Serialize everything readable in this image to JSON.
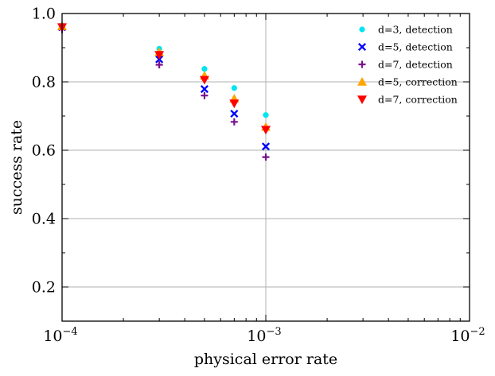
{
  "chart_data": {
    "type": "scatter",
    "title": "",
    "xlabel": "physical error rate",
    "ylabel": "success rate",
    "xscale": "log",
    "xlim": [
      0.0001,
      0.01
    ],
    "ylim": [
      0.1,
      1.0
    ],
    "grid": true,
    "legend_position": "top-right",
    "x_ticks": [
      {
        "value": 0.0001,
        "base": "10",
        "exp": "−4"
      },
      {
        "value": 0.001,
        "base": "10",
        "exp": "−3"
      },
      {
        "value": 0.01,
        "base": "10",
        "exp": "−2"
      }
    ],
    "y_ticks": [
      {
        "value": 0.2,
        "label": "0.2"
      },
      {
        "value": 0.4,
        "label": "0.4"
      },
      {
        "value": 0.6,
        "label": "0.6"
      },
      {
        "value": 0.8,
        "label": "0.8"
      },
      {
        "value": 1.0,
        "label": "1.0"
      }
    ],
    "series": [
      {
        "name": "d=3, detection",
        "marker": "circle",
        "color": "#00e5ee",
        "x": [
          0.0001,
          0.0003,
          0.0005,
          0.0007,
          0.001
        ],
        "y": [
          0.965,
          0.897,
          0.838,
          0.782,
          0.703
        ]
      },
      {
        "name": "d=5, detection",
        "marker": "x",
        "color": "#0000ff",
        "x": [
          0.0001,
          0.0003,
          0.0005,
          0.0007,
          0.001
        ],
        "y": [
          0.96,
          0.866,
          0.779,
          0.707,
          0.611
        ]
      },
      {
        "name": "d=7, detection",
        "marker": "plus",
        "color": "#7a0f8c",
        "x": [
          0.0001,
          0.0003,
          0.0005,
          0.0007,
          0.001
        ],
        "y": [
          0.953,
          0.85,
          0.76,
          0.683,
          0.58
        ]
      },
      {
        "name": "d=5, correction",
        "marker": "triangle-up",
        "color": "#ffa500",
        "x": [
          0.0001,
          0.0003,
          0.0005,
          0.0007,
          0.001
        ],
        "y": [
          0.963,
          0.887,
          0.818,
          0.751,
          0.668
        ]
      },
      {
        "name": "d=7, correction",
        "marker": "triangle-down",
        "color": "#ff0000",
        "x": [
          0.0001,
          0.0003,
          0.0005,
          0.0007,
          0.001
        ],
        "y": [
          0.96,
          0.879,
          0.806,
          0.737,
          0.66
        ]
      }
    ]
  }
}
